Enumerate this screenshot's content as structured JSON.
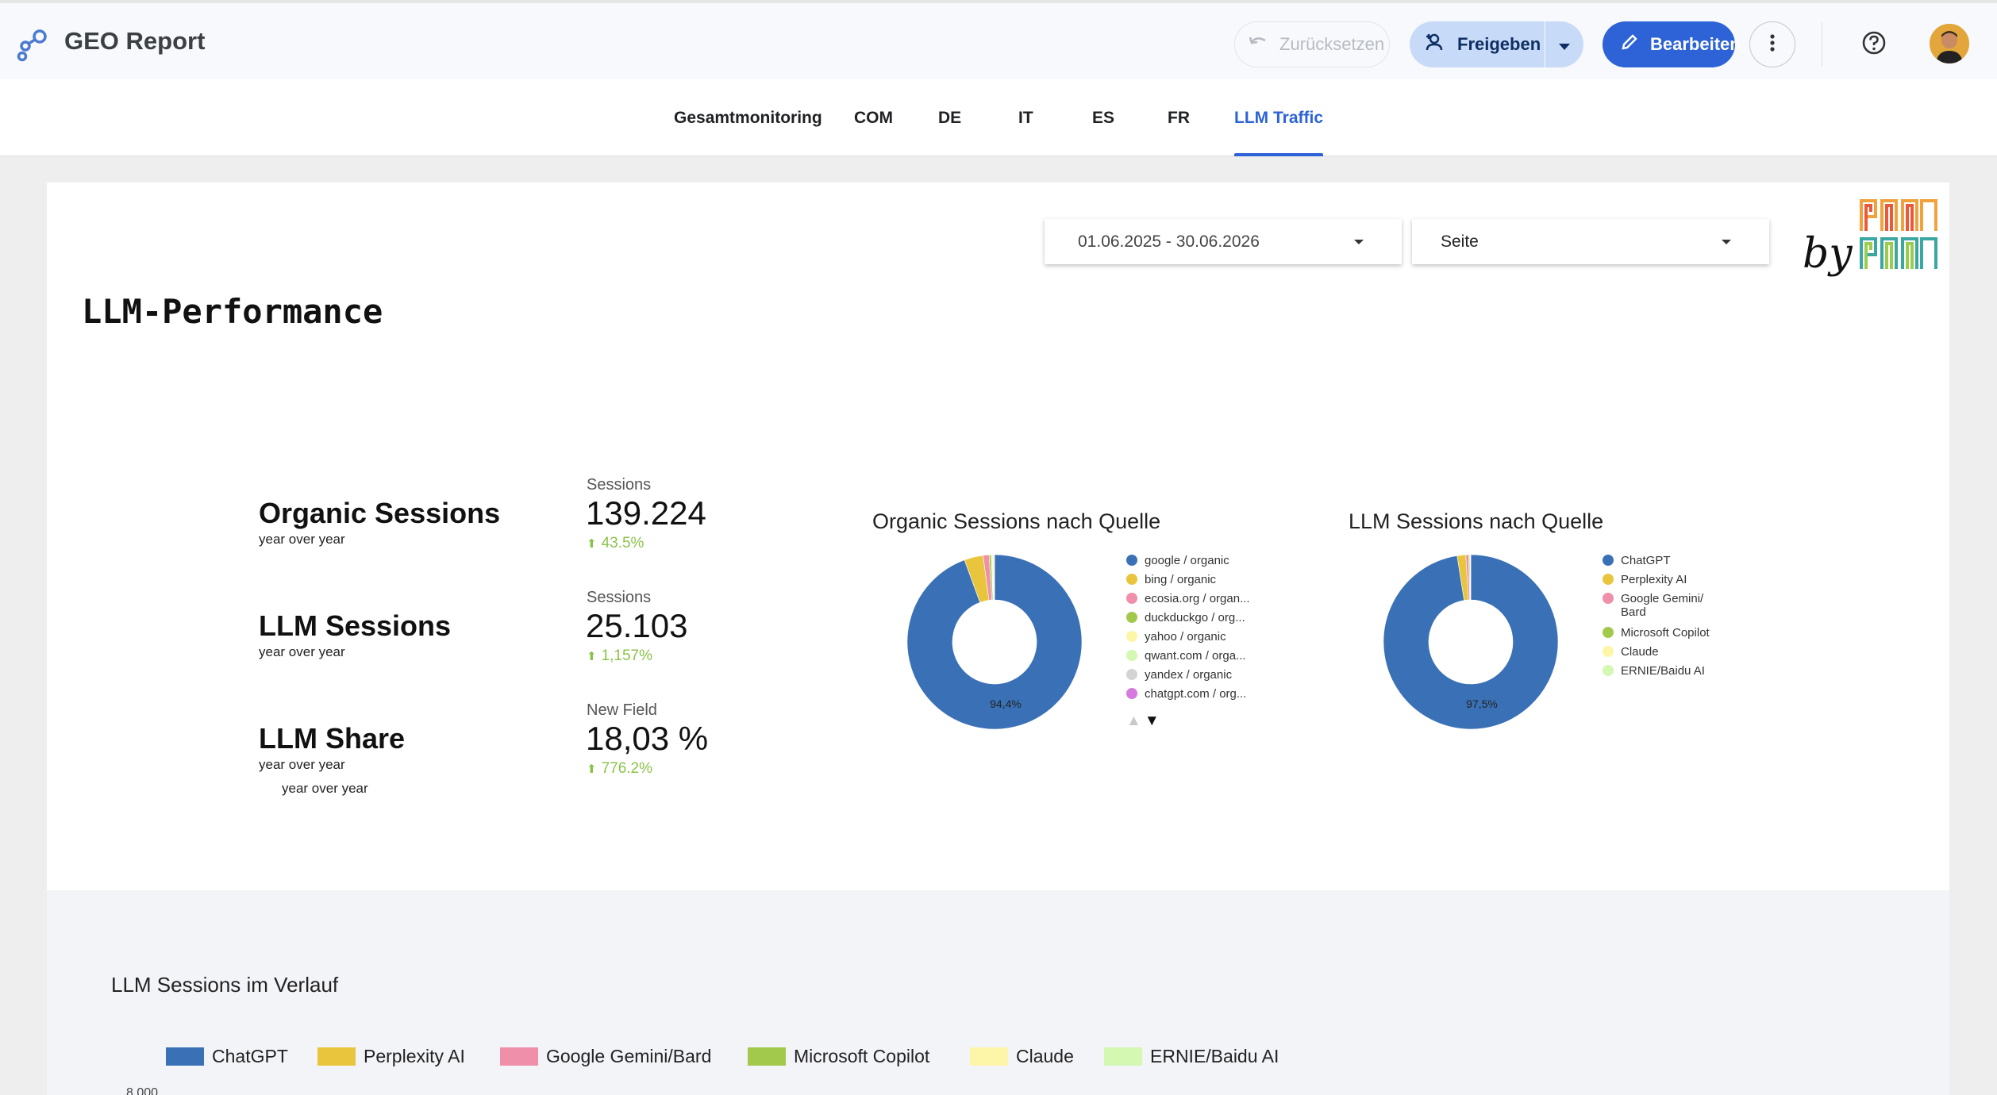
{
  "app": {
    "title": "GEO Report",
    "reset_label": "Zurücksetzen",
    "share_label": "Freigeben",
    "edit_label": "Bearbeiten"
  },
  "tabs": [
    {
      "label": "Gesamtmonitoring",
      "active": false
    },
    {
      "label": "COM",
      "active": false
    },
    {
      "label": "DE",
      "active": false
    },
    {
      "label": "IT",
      "active": false
    },
    {
      "label": "ES",
      "active": false
    },
    {
      "label": "FR",
      "active": false
    },
    {
      "label": "LLM Traffic",
      "active": true
    }
  ],
  "filters": {
    "date_range": "01.06.2025 - 30.06.2026",
    "dimension": "Seite"
  },
  "branding": {
    "by_text": "by",
    "logo_text": "panpan"
  },
  "page_title": "LLM-Performance",
  "kpis": [
    {
      "label": "Organic Sessions",
      "sub": "year over year",
      "metric": "Sessions",
      "value": "139.224",
      "delta": "43.5%"
    },
    {
      "label": "LLM Sessions",
      "sub": "year over year",
      "metric": "Sessions",
      "value": "25.103",
      "delta": "1,157%"
    },
    {
      "label": "LLM Share",
      "sub": "year over year",
      "sub2": "year over year",
      "metric": "New Field",
      "value": "18,03 %",
      "delta": "776.2%"
    }
  ],
  "chart_data": [
    {
      "type": "pie",
      "title": "Organic Sessions nach Quelle",
      "labels": [
        "google / organic",
        "bing / organic",
        "ecosia.org / organ...",
        "duckduckgo / org...",
        "yahoo / organic",
        "qwant.com / orga...",
        "yandex / organic",
        "chatgpt.com / org..."
      ],
      "colors": [
        "#3a71b6",
        "#e8c53c",
        "#ef8fa9",
        "#a2c94c",
        "#fdf6a8",
        "#d4f7b2",
        "#d4d4d4",
        "#d67ae0"
      ],
      "values": [
        94.4,
        3.5,
        1.1,
        0.4,
        0.2,
        0.2,
        0.1,
        0.1
      ],
      "data_labels": [
        "94,4%"
      ],
      "donut": true
    },
    {
      "type": "pie",
      "title": "LLM Sessions nach Quelle",
      "labels": [
        "ChatGPT",
        "Perplexity AI",
        "Google Gemini/\nBard",
        "Microsoft Copilot",
        "Claude",
        "ERNIE/Baidu AI"
      ],
      "colors": [
        "#3a71b6",
        "#e8c53c",
        "#ef8fa9",
        "#a2c94c",
        "#fdf6a8",
        "#d4f7b2"
      ],
      "values": [
        97.5,
        1.6,
        0.5,
        0.2,
        0.1,
        0.1
      ],
      "data_labels": [
        "97,5%"
      ],
      "donut": true
    },
    {
      "type": "line",
      "title": "LLM Sessions im Verlauf",
      "series": [
        {
          "name": "ChatGPT",
          "color": "#3a71b6"
        },
        {
          "name": "Perplexity AI",
          "color": "#e8c53c"
        },
        {
          "name": "Google Gemini/Bard",
          "color": "#ef8fa9"
        },
        {
          "name": "Microsoft Copilot",
          "color": "#a2c94c"
        },
        {
          "name": "Claude",
          "color": "#fdf6a8"
        },
        {
          "name": "ERNIE/Baidu AI",
          "color": "#d4f7b2"
        }
      ],
      "y_ticks": [
        "8.000"
      ]
    }
  ]
}
